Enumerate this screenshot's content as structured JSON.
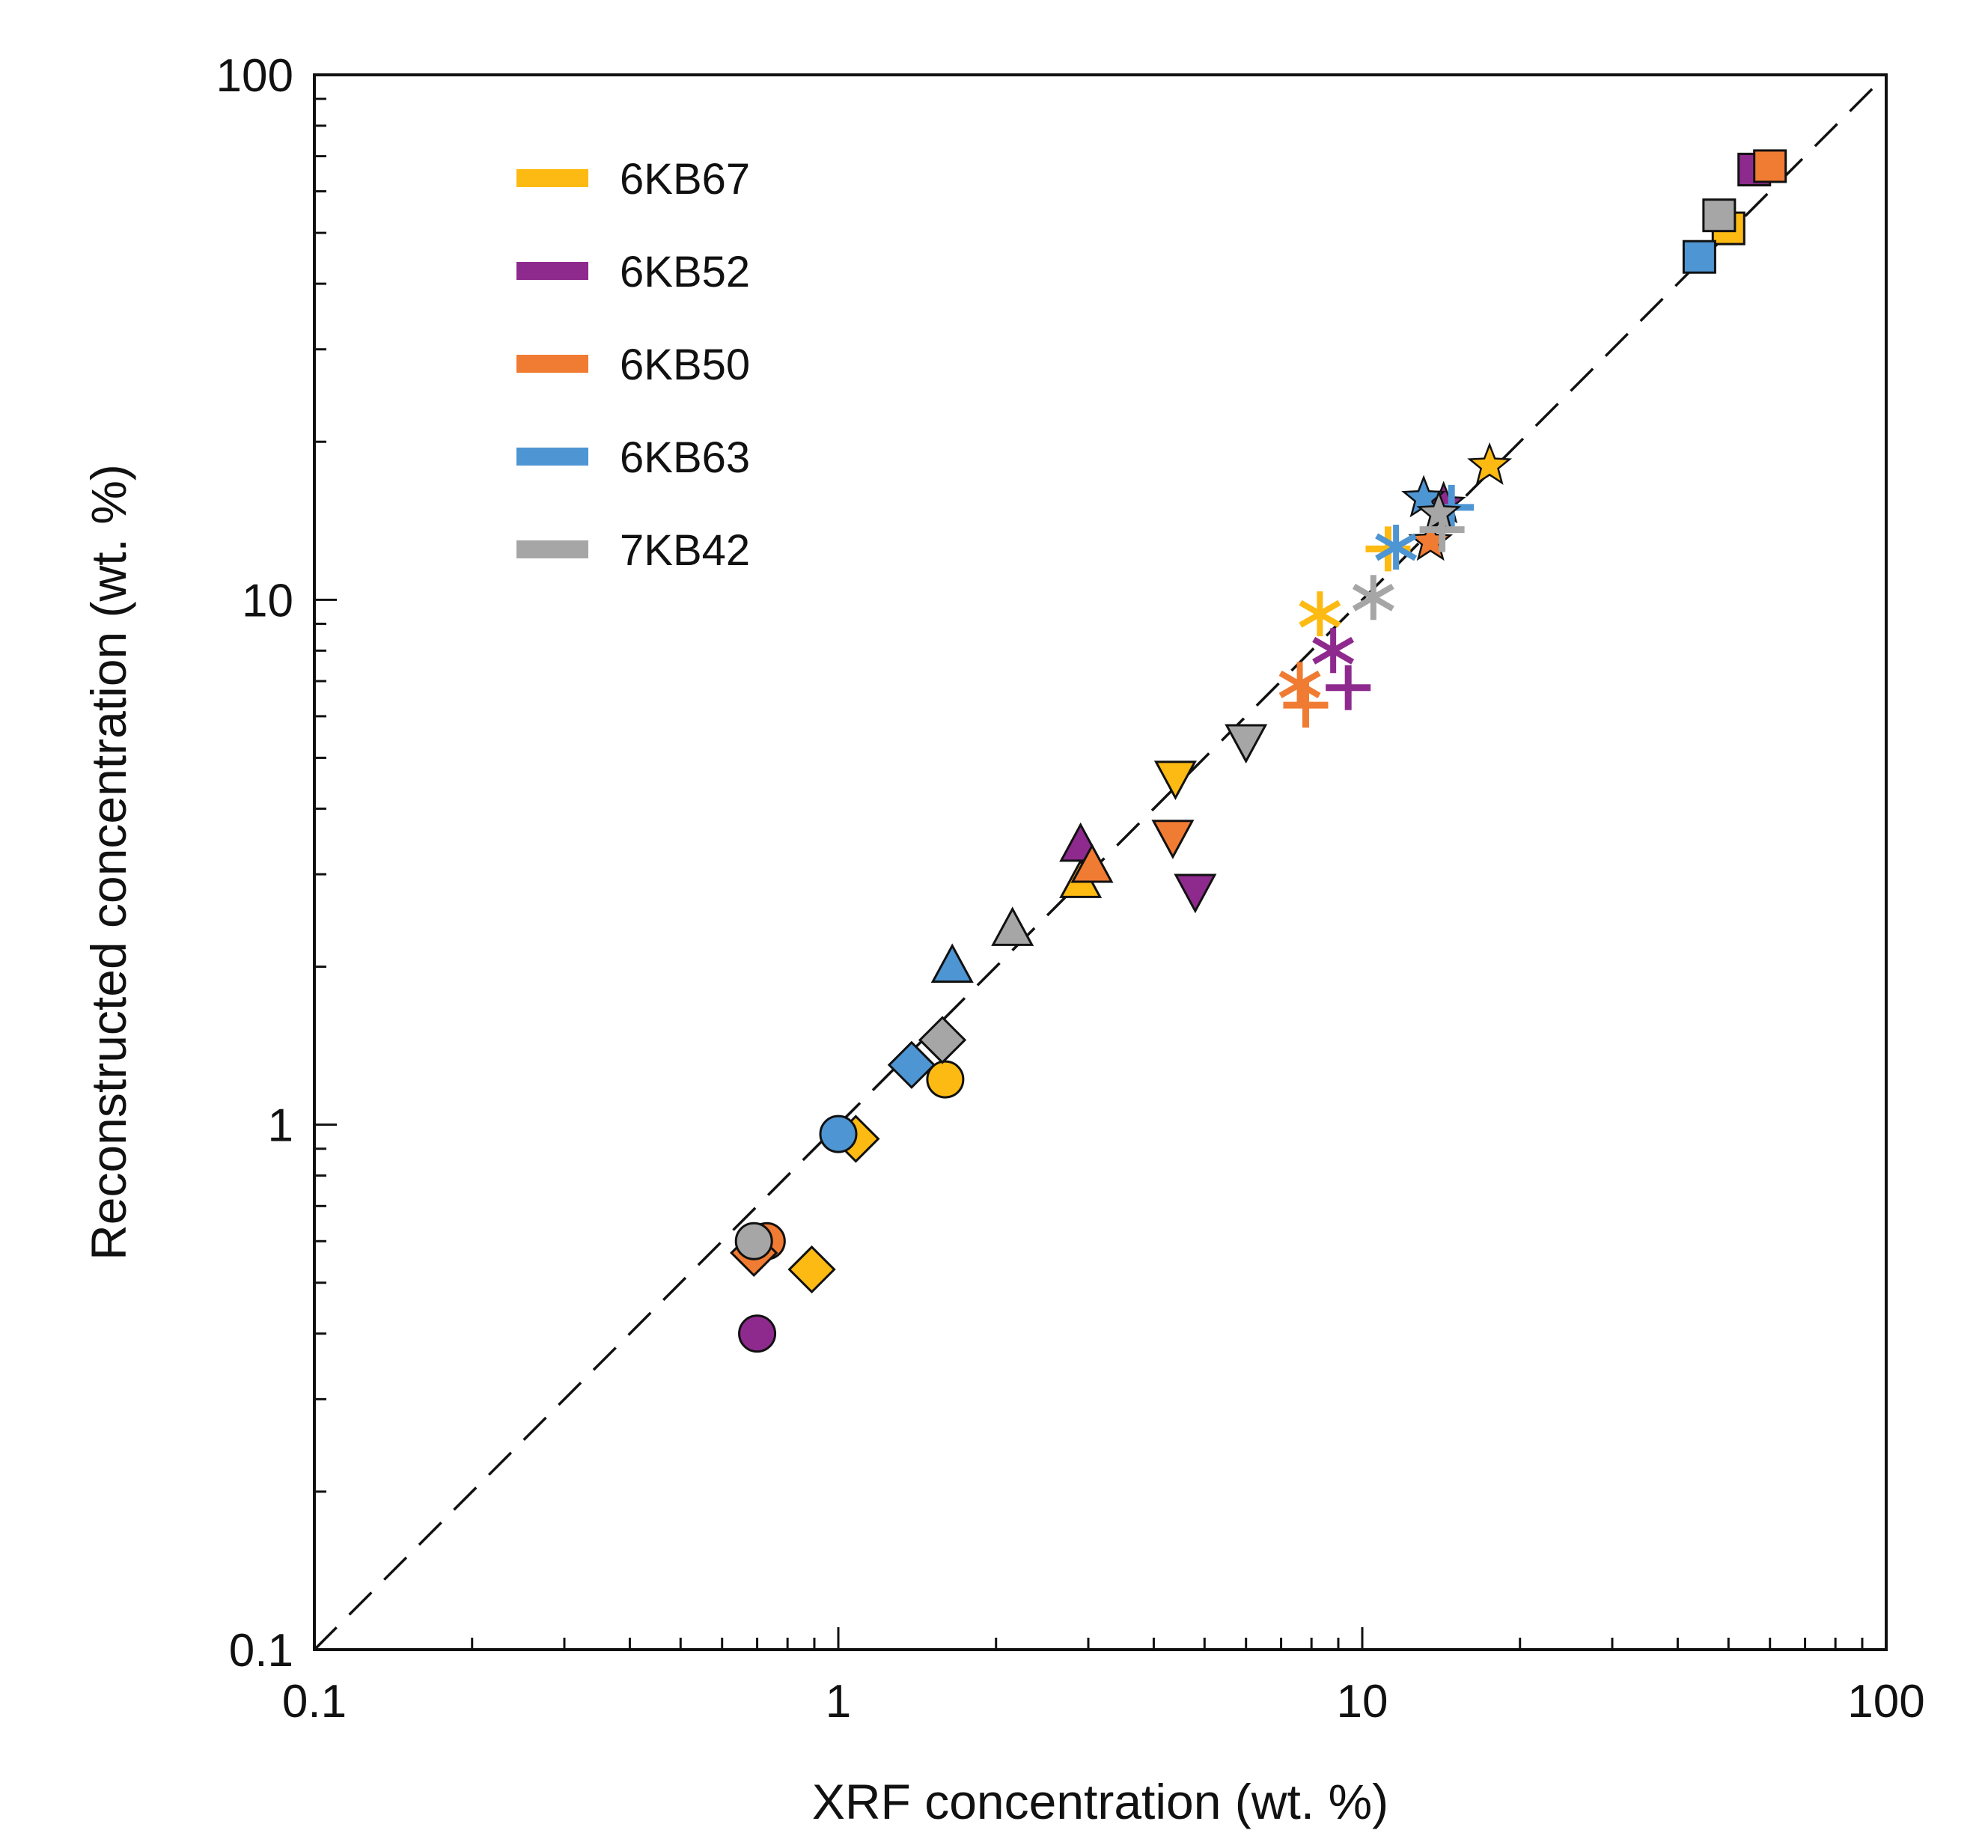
{
  "chart_data": {
    "type": "scatter",
    "xlabel": "XRF concentration (wt. %)",
    "ylabel": "Reconstructed concentration (wt. %)",
    "x_scale": "log",
    "y_scale": "log",
    "xlim": [
      0.1,
      100
    ],
    "ylim": [
      0.1,
      100
    ],
    "x_ticks": [
      "0.1",
      "1",
      "10",
      "100"
    ],
    "y_ticks": [
      "0.1",
      "1",
      "10",
      "100"
    ],
    "grid": false,
    "reference_line": "1:1 dashed",
    "legend_position": "top-left",
    "colors": {
      "6KB67": "#FDBA12",
      "6KB52": "#8E2A8E",
      "6KB50": "#F07B32",
      "6KB63": "#4E95D3",
      "7KB42": "#A6A6A6"
    },
    "series": [
      {
        "name": "6KB67",
        "points": [
          {
            "marker": "square",
            "x": 50,
            "y": 51
          },
          {
            "marker": "star",
            "x": 17.5,
            "y": 18
          },
          {
            "marker": "plus",
            "x": 11.2,
            "y": 12.5
          },
          {
            "marker": "asterisk",
            "x": 8.3,
            "y": 9.4
          },
          {
            "marker": "triangle-down",
            "x": 4.4,
            "y": 4.6
          },
          {
            "marker": "triangle-up",
            "x": 2.9,
            "y": 2.9
          },
          {
            "marker": "circle",
            "x": 1.6,
            "y": 1.22
          },
          {
            "marker": "diamond",
            "x": 1.08,
            "y": 0.94
          },
          {
            "marker": "diamond",
            "x": 0.89,
            "y": 0.53
          }
        ]
      },
      {
        "name": "6KB52",
        "points": [
          {
            "marker": "square",
            "x": 56,
            "y": 66
          },
          {
            "marker": "star",
            "x": 14.3,
            "y": 15.2
          },
          {
            "marker": "asterisk",
            "x": 8.8,
            "y": 8.0
          },
          {
            "marker": "plus",
            "x": 9.4,
            "y": 6.8
          },
          {
            "marker": "triangle-down",
            "x": 4.8,
            "y": 2.8
          },
          {
            "marker": "triangle-up",
            "x": 2.9,
            "y": 3.4
          },
          {
            "marker": "circle",
            "x": 0.7,
            "y": 0.4
          }
        ]
      },
      {
        "name": "6KB50",
        "points": [
          {
            "marker": "square",
            "x": 60,
            "y": 67
          },
          {
            "marker": "star",
            "x": 13.5,
            "y": 12.9
          },
          {
            "marker": "asterisk",
            "x": 7.6,
            "y": 6.9
          },
          {
            "marker": "plus",
            "x": 7.8,
            "y": 6.3
          },
          {
            "marker": "triangle-down",
            "x": 4.35,
            "y": 3.55
          },
          {
            "marker": "triangle-up",
            "x": 3.05,
            "y": 3.1
          },
          {
            "marker": "circle",
            "x": 0.73,
            "y": 0.6
          },
          {
            "marker": "diamond",
            "x": 0.69,
            "y": 0.57
          }
        ]
      },
      {
        "name": "6KB63",
        "points": [
          {
            "marker": "square",
            "x": 44,
            "y": 45
          },
          {
            "marker": "star",
            "x": 13.1,
            "y": 15.6
          },
          {
            "marker": "plus",
            "x": 14.8,
            "y": 15
          },
          {
            "marker": "asterisk",
            "x": 11.6,
            "y": 12.6
          },
          {
            "marker": "triangle-up",
            "x": 1.65,
            "y": 2
          },
          {
            "marker": "diamond",
            "x": 1.38,
            "y": 1.3
          },
          {
            "marker": "circle",
            "x": 1.0,
            "y": 0.96
          }
        ]
      },
      {
        "name": "7KB42",
        "points": [
          {
            "marker": "square",
            "x": 48,
            "y": 54
          },
          {
            "marker": "star",
            "x": 14,
            "y": 14.6
          },
          {
            "marker": "plus",
            "x": 14.2,
            "y": 13.6
          },
          {
            "marker": "asterisk",
            "x": 10.5,
            "y": 10.1
          },
          {
            "marker": "triangle-down",
            "x": 6.0,
            "y": 5.4
          },
          {
            "marker": "triangle-up",
            "x": 2.15,
            "y": 2.35
          },
          {
            "marker": "diamond",
            "x": 1.58,
            "y": 1.45
          },
          {
            "marker": "circle",
            "x": 0.69,
            "y": 0.6
          }
        ]
      }
    ]
  }
}
